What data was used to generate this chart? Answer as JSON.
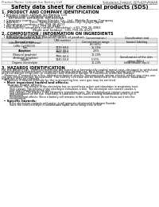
{
  "bg_color": "#ffffff",
  "header_left": "Product Name: Lithium Ion Battery Cell",
  "header_right_line1": "Substance Control: SDS-089-00018",
  "header_right_line2": "Established / Revision: Dec.7.2010",
  "title": "Safety data sheet for chemical products (SDS)",
  "section1_title": "1. PRODUCT AND COMPANY IDENTIFICATION",
  "section1_lines": [
    "  • Product name: Lithium Ion Battery Cell",
    "  • Product code: Cylindrical-type cell",
    "       04Y-86500, 04Y-86500, 04Y-86500A",
    "  • Company name:     Sanyo Electric Co., Ltd., Mobile Energy Company",
    "  • Address:          2001, Kamishinden, Sumoto-City, Hyogo, Japan",
    "  • Telephone number: +81-799-26-4111",
    "  • Fax number:       +81-799-26-4129",
    "  • Emergency telephone number (Weekday): +81-799-26-3862",
    "                               (Night and holiday): +81-799-26-4129"
  ],
  "section2_title": "2. COMPOSITION / INFORMATION ON INGREDIENTS",
  "section2_sub1": "  • Substance or preparation: Preparation",
  "section2_sub2": "  • Information about the chemical nature of product:",
  "table_col_labels": [
    "Common chemical names /\nBeneral name",
    "CAS number",
    "Concentration /\nConcentration range",
    "Classification and\nhazard labeling"
  ],
  "table_rows": [
    [
      "Lithium cobalt (laminar)\n(LiMn-Co)(RCO3)",
      "-",
      "(30-60%)",
      "-"
    ],
    [
      "Iron",
      "7439-89-6",
      "15-25%",
      "-"
    ],
    [
      "Aluminum",
      "7429-90-5",
      "2-6%",
      "-"
    ],
    [
      "Graphite\n(Natural graphite)\n(Artificial graphite)",
      "7782-42-5\n7782-42-2",
      "10-20%",
      "-"
    ],
    [
      "Copper",
      "7440-50-8",
      "5-15%",
      "Sensitization of the skin\ngroup R42,2"
    ],
    [
      "Organic electrolyte",
      "-",
      "10-20%",
      "Inflammable liquid"
    ]
  ],
  "section3_title": "3. HAZARDS IDENTIFICATION",
  "section3_lines": [
    "For the battery can, chemical materials are stored in a hermetically-sealed metal case, designed to withstand",
    "temperatures and pressures encountered during normal use. As a result, during normal use, there is no",
    "physical danger of ignition or explosion and therefore danger of hazardous materials leakage.",
    "   However, if exposed to a fire, added mechanical shocks, decomposed, winter electric whose any miss-use,",
    "the gas release cannot be operated. The battery cell case will be breached of fire-extreme, hazardous",
    "materials may be released.",
    "   Moreover, if heated strongly by the surrounding fire, soot gas may be emitted."
  ],
  "section3_bullet1": "  • Most important hazard and effects:",
  "section3_human": "      Human health effects:",
  "section3_human_lines": [
    "          Inhalation: The release of the electrolyte has an anesthesia action and stimulates in respiratory tract.",
    "          Skin contact: The release of the electrolyte stimulates a skin. The electrolyte skin contact causes a",
    "          sore and stimulation on the skin.",
    "          Eye contact: The release of the electrolyte stimulates eyes. The electrolyte eye contact causes a sore",
    "          and stimulation on the eye. Especially, a substance that causes a strong inflammation of the eye is",
    "          mentioned.",
    "          Environmental effects: Since a battery cell remains in the environment, do not throw out it into the",
    "          environment."
  ],
  "section3_bullet2": "  • Specific hazards:",
  "section3_specific_lines": [
    "          If the electrolyte contacts with water, it will generate detrimental hydrogen fluoride.",
    "          Since the seal electrolyte is inflammable liquid, do not bring close to fire."
  ]
}
